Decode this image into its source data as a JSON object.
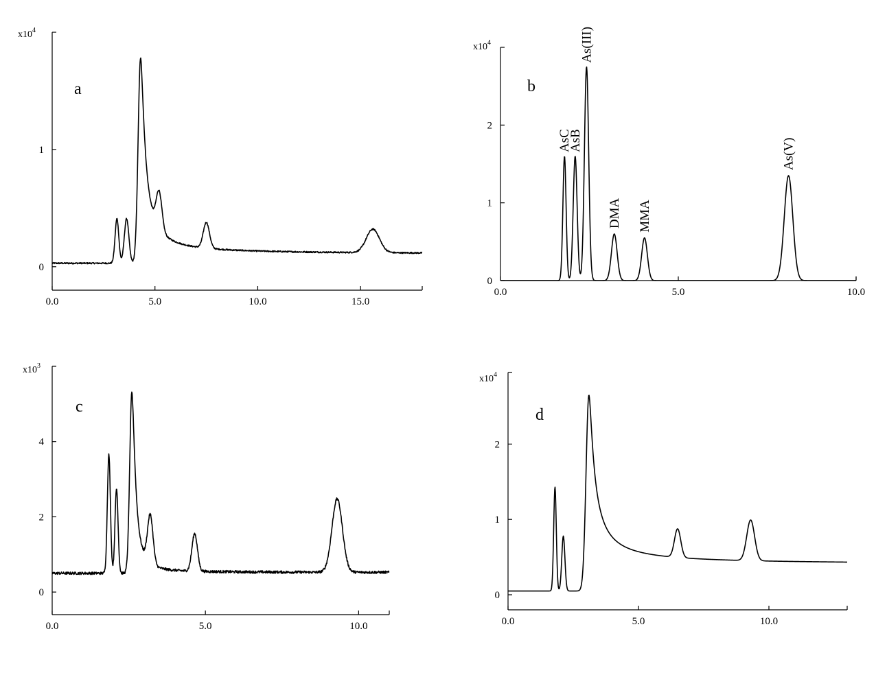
{
  "chart_data": [
    {
      "type": "line",
      "panel_label": "a",
      "y_multiplier": {
        "base": "x10",
        "exponent": "4"
      },
      "xlim": [
        0,
        18
      ],
      "ylim": [
        -0.2,
        2.0
      ],
      "xticks": [
        0,
        5,
        10,
        15
      ],
      "xtick_labels": [
        "0.0",
        "5.0",
        "10.0",
        "15.0"
      ],
      "yticks": [
        0,
        1
      ],
      "ytick_labels": [
        "0",
        "1"
      ],
      "baseline": 0.03,
      "noise": 0.006,
      "peaks": [
        {
          "x": 3.15,
          "height": 0.38,
          "width": 0.09
        },
        {
          "x": 3.62,
          "height": 0.38,
          "width": 0.11
        },
        {
          "x": 4.3,
          "height": 1.75,
          "width": 0.12,
          "tail": 0.4
        },
        {
          "x": 5.2,
          "height": 0.32,
          "width": 0.14
        },
        {
          "x": 7.5,
          "height": 0.22,
          "width": 0.15
        },
        {
          "x": 15.6,
          "height": 0.2,
          "width": 0.32
        }
      ],
      "peak_labels": []
    },
    {
      "type": "line",
      "panel_label": "b",
      "y_multiplier": {
        "base": "x10",
        "exponent": "4"
      },
      "xlim": [
        0,
        10
      ],
      "ylim": [
        0,
        3.0
      ],
      "xticks": [
        0,
        5,
        10
      ],
      "xtick_labels": [
        "0.0",
        "5.0",
        "10.0"
      ],
      "yticks": [
        0,
        1,
        2
      ],
      "ytick_labels": [
        "0",
        "1",
        "2"
      ],
      "baseline": 0.0,
      "noise": 0.0,
      "peaks": [
        {
          "x": 1.8,
          "height": 1.6,
          "width": 0.045
        },
        {
          "x": 2.1,
          "height": 1.6,
          "width": 0.055
        },
        {
          "x": 2.42,
          "height": 2.75,
          "width": 0.06
        },
        {
          "x": 3.2,
          "height": 0.6,
          "width": 0.08
        },
        {
          "x": 4.05,
          "height": 0.55,
          "width": 0.08
        },
        {
          "x": 8.1,
          "height": 1.35,
          "width": 0.12
        }
      ],
      "peak_labels": [
        {
          "text": "AsC",
          "x": 1.8,
          "y": 1.65
        },
        {
          "text": "AsB",
          "x": 2.1,
          "y": 1.65
        },
        {
          "text": "As(III)",
          "x": 2.42,
          "y": 2.8
        },
        {
          "text": "DMA",
          "x": 3.2,
          "y": 0.67
        },
        {
          "text": "MMA",
          "x": 4.05,
          "y": 0.62
        },
        {
          "text": "As(V)",
          "x": 8.1,
          "y": 1.42
        }
      ]
    },
    {
      "type": "line",
      "panel_label": "c",
      "y_multiplier": {
        "base": "x10",
        "exponent": "3"
      },
      "xlim": [
        0,
        11
      ],
      "ylim": [
        -0.6,
        6.0
      ],
      "xticks": [
        0,
        5,
        10
      ],
      "xtick_labels": [
        "0.0",
        "5.0",
        "10.0"
      ],
      "yticks": [
        0,
        2,
        4
      ],
      "ytick_labels": [
        "0",
        "2",
        "4"
      ],
      "baseline": 0.5,
      "noise": 0.035,
      "peaks": [
        {
          "x": 1.85,
          "height": 3.15,
          "width": 0.05
        },
        {
          "x": 2.1,
          "height": 2.25,
          "width": 0.05
        },
        {
          "x": 2.6,
          "height": 4.8,
          "width": 0.07,
          "tail": 0.3
        },
        {
          "x": 3.2,
          "height": 1.3,
          "width": 0.09
        },
        {
          "x": 4.65,
          "height": 1.0,
          "width": 0.09
        },
        {
          "x": 9.3,
          "height": 1.95,
          "width": 0.17
        }
      ],
      "peak_labels": []
    },
    {
      "type": "line",
      "panel_label": "d",
      "y_multiplier": {
        "base": "x10",
        "exponent": "4"
      },
      "xlim": [
        0,
        13
      ],
      "ylim": [
        -0.2,
        2.95
      ],
      "xticks": [
        0,
        5,
        10
      ],
      "xtick_labels": [
        "0.0",
        "5.0",
        "10.0"
      ],
      "yticks": [
        0,
        1,
        2
      ],
      "ytick_labels": [
        "0",
        "1",
        "2"
      ],
      "baseline": 0.05,
      "noise": 0.0,
      "peaks": [
        {
          "x": 1.8,
          "height": 1.38,
          "width": 0.05
        },
        {
          "x": 2.12,
          "height": 0.73,
          "width": 0.06
        },
        {
          "x": 3.1,
          "height": 2.6,
          "width": 0.11,
          "tail": 0.5
        },
        {
          "x": 6.5,
          "height": 0.38,
          "width": 0.12
        },
        {
          "x": 9.3,
          "height": 0.54,
          "width": 0.15
        }
      ],
      "peak_labels": []
    }
  ]
}
